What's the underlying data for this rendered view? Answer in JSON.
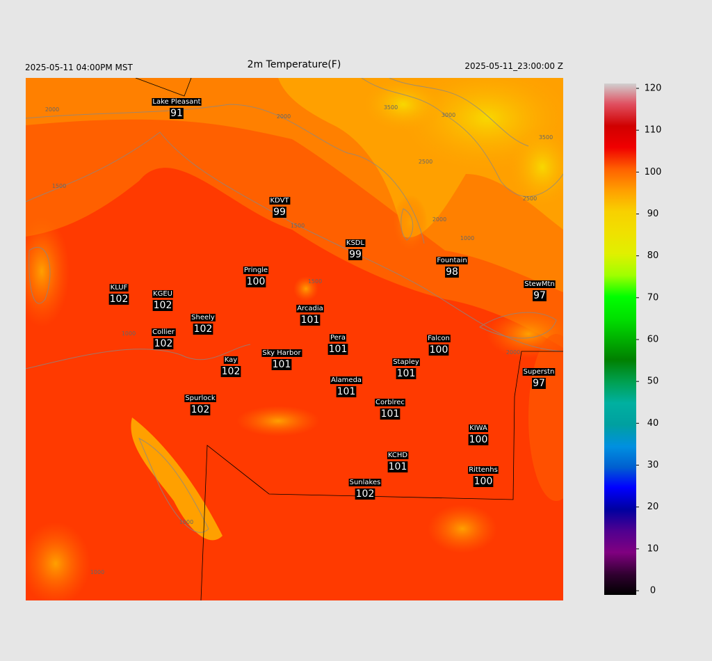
{
  "header": {
    "left": "2025-05-11 04:00PM MST",
    "title": "2m Temperature(F)",
    "right": "2025-05-11_23:00:00 Z"
  },
  "stations": [
    {
      "name": "Lake Pleasant",
      "value": 91
    },
    {
      "name": "KDVT",
      "value": 99
    },
    {
      "name": "KSDL",
      "value": 99
    },
    {
      "name": "Fountain",
      "value": 98
    },
    {
      "name": "StewMtn",
      "value": 97
    },
    {
      "name": "KLUF",
      "value": 102
    },
    {
      "name": "KGEU",
      "value": 102
    },
    {
      "name": "Pringle",
      "value": 100
    },
    {
      "name": "Arcadia",
      "value": 101
    },
    {
      "name": "Sheely",
      "value": 102
    },
    {
      "name": "Collier",
      "value": 102
    },
    {
      "name": "Pera",
      "value": 101
    },
    {
      "name": "Falcon",
      "value": 100
    },
    {
      "name": "Kay",
      "value": 102
    },
    {
      "name": "Sky Harbor",
      "value": 101
    },
    {
      "name": "Stapley",
      "value": 101
    },
    {
      "name": "Superstn",
      "value": 97
    },
    {
      "name": "Alameda",
      "value": 101
    },
    {
      "name": "Spurlock",
      "value": 102
    },
    {
      "name": "Corblrec",
      "value": 101
    },
    {
      "name": "KIWA",
      "value": 100
    },
    {
      "name": "KCHD",
      "value": 101
    },
    {
      "name": "Rittenhs",
      "value": 100
    },
    {
      "name": "Sunlakes",
      "value": 102
    }
  ],
  "contour_labels": [
    2000,
    2000,
    3500,
    3000,
    3500,
    2500,
    2500,
    2000,
    1500,
    1500,
    1000,
    1500,
    1000,
    2000,
    1000,
    1000
  ],
  "colorbar": {
    "range": [
      0,
      120
    ],
    "ticks": [
      0,
      10,
      20,
      30,
      40,
      50,
      60,
      70,
      80,
      90,
      100,
      110,
      120
    ]
  }
}
